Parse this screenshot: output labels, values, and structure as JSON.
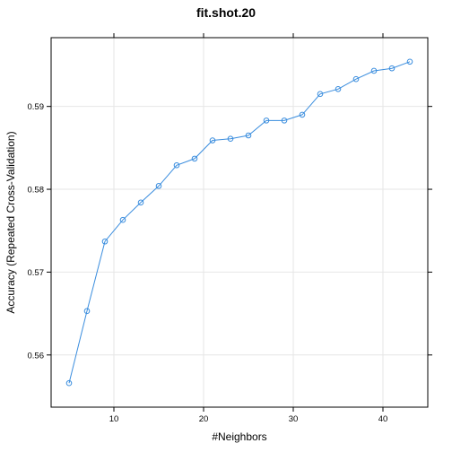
{
  "chart_data": {
    "type": "line",
    "title": "fit.shot.20",
    "xlabel": "#Neighbors",
    "ylabel": "Accuracy (Repeated Cross-Validation)",
    "xlim": [
      3,
      45
    ],
    "ylim": [
      0.5537,
      0.5983
    ],
    "x_ticks": [
      10,
      20,
      30,
      40
    ],
    "y_ticks": [
      0.56,
      0.57,
      0.58,
      0.59
    ],
    "grid": true,
    "color": "#3a8dde",
    "x": [
      5,
      7,
      9,
      11,
      13,
      15,
      17,
      19,
      21,
      23,
      25,
      27,
      29,
      31,
      33,
      35,
      37,
      39,
      41,
      43
    ],
    "y": [
      0.5566,
      0.5653,
      0.5737,
      0.5763,
      0.5784,
      0.5804,
      0.5829,
      0.5837,
      0.5859,
      0.5861,
      0.5865,
      0.5883,
      0.5883,
      0.589,
      0.5915,
      0.5921,
      0.5933,
      0.5943,
      0.5946,
      0.5954
    ]
  }
}
